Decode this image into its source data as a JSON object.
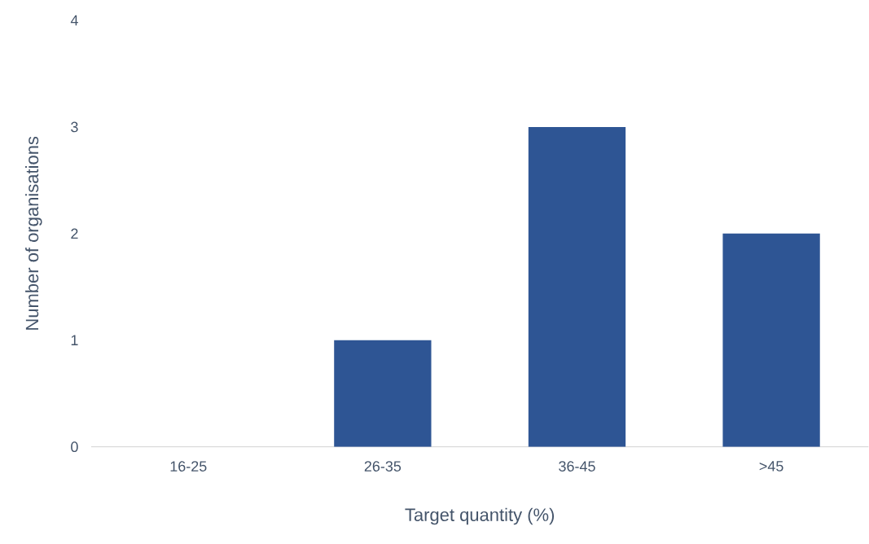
{
  "chart_data": {
    "type": "bar",
    "xlabel": "Target quantity (%)",
    "ylabel": "Number of organisations",
    "categories": [
      "16-25",
      "26-35",
      "36-45",
      ">45"
    ],
    "values": [
      0,
      1,
      3,
      2
    ],
    "color": "#2e5594",
    "ylim": [
      0,
      4
    ],
    "yticks": [
      0,
      1,
      2,
      3,
      4
    ]
  }
}
